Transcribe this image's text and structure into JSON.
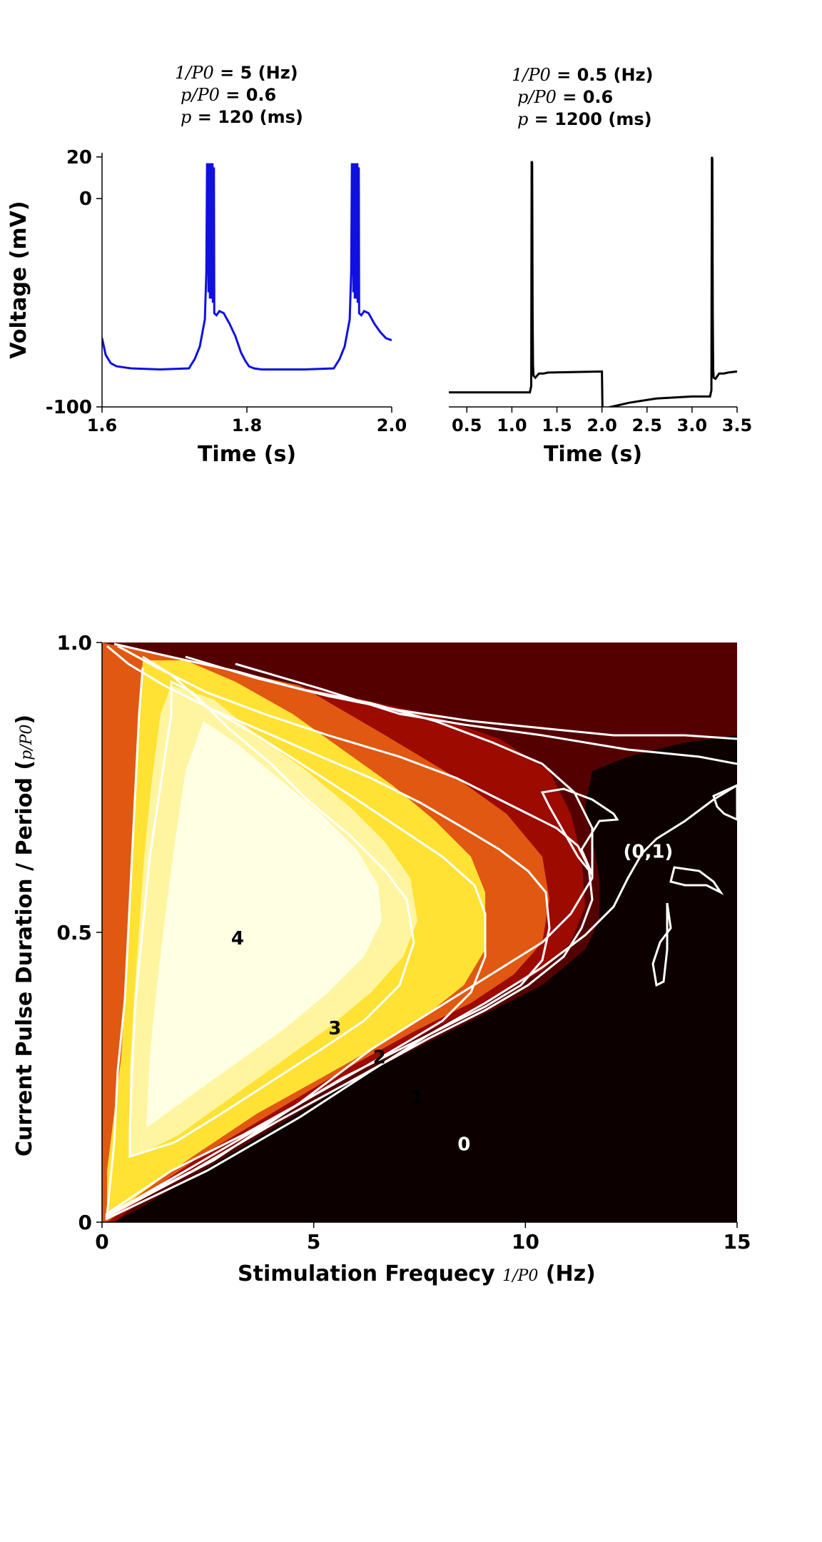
{
  "chart_data": [
    {
      "type": "line",
      "title_lines": [
        {
          "math": "1/P0",
          "text": " = 5 (Hz)"
        },
        {
          "math": "p/P0",
          "text": " = 0.6"
        },
        {
          "math": "p",
          "text": " = 120 (ms)"
        }
      ],
      "xlabel": "Time (s)",
      "ylabel": "Voltage (mV)",
      "xlim": [
        1.6,
        2.0
      ],
      "ylim": [
        -100,
        22
      ],
      "xticks": [
        "1.6",
        "1.8",
        "2.0"
      ],
      "xtick_values": [
        1.6,
        1.8,
        2.0
      ],
      "yticks": [
        "20",
        "0",
        "-100"
      ],
      "ytick_values": [
        20,
        0,
        -100
      ],
      "color": "#1010e0",
      "series": [
        {
          "x": [
            1.6,
            1.605,
            1.612,
            1.62,
            1.64,
            1.68,
            1.72,
            1.728,
            1.735,
            1.742,
            1.744,
            1.745,
            1.746,
            1.7465,
            1.747,
            1.748,
            1.7485,
            1.749,
            1.75,
            1.7505,
            1.751,
            1.752,
            1.7525,
            1.753,
            1.754,
            1.7545,
            1.755,
            1.758,
            1.762,
            1.768,
            1.776,
            1.784,
            1.792,
            1.798,
            1.803,
            1.81,
            1.82,
            1.84,
            1.88,
            1.92,
            1.928,
            1.935,
            1.942,
            1.944,
            1.945,
            1.946,
            1.9465,
            1.947,
            1.948,
            1.9485,
            1.949,
            1.95,
            1.9505,
            1.951,
            1.952,
            1.9525,
            1.953,
            1.954,
            1.9545,
            1.955,
            1.958,
            1.962,
            1.968,
            1.976,
            1.984,
            1.992,
            2.0
          ],
          "y": [
            -67,
            -75,
            -79,
            -80.5,
            -81.5,
            -82,
            -81.5,
            -77,
            -71,
            -58,
            -35,
            17,
            -35,
            17,
            -45,
            -35,
            17,
            -48,
            -38,
            17,
            -48,
            -40,
            17,
            -50,
            -40,
            15,
            -55,
            -56,
            -54,
            -55,
            -60,
            -66,
            -74,
            -78,
            -80.5,
            -81.5,
            -82,
            -82,
            -82,
            -81.5,
            -77,
            -71,
            -58,
            -35,
            17,
            -35,
            17,
            -45,
            -35,
            17,
            -48,
            -38,
            17,
            -48,
            -40,
            17,
            -50,
            -40,
            15,
            -55,
            -56,
            -54,
            -55,
            -60,
            -64,
            -67,
            -68
          ]
        }
      ]
    },
    {
      "type": "line",
      "title_lines": [
        {
          "math": "1/P0",
          "text": " = 0.5 (Hz)"
        },
        {
          "math": "p/P0",
          "text": " = 0.6"
        },
        {
          "math": "p",
          "text": " = 1200 (ms)"
        }
      ],
      "xlabel": "Time (s)",
      "xlim": [
        0.3,
        3.5
      ],
      "ylim": [
        -100,
        22
      ],
      "xticks": [
        "0.5",
        "1.0",
        "1.5",
        "2.0",
        "2.5",
        "3.0",
        "3.5"
      ],
      "xtick_values": [
        0.5,
        1.0,
        1.5,
        2.0,
        2.5,
        3.0,
        3.5
      ],
      "color": "#000000",
      "series": [
        {
          "x": [
            0.3,
            1.0,
            1.2,
            1.215,
            1.22,
            1.225,
            1.23,
            1.235,
            1.24,
            1.26,
            1.3,
            1.35,
            1.4,
            2.0,
            2.005,
            2.02,
            2.1,
            2.3,
            2.6,
            3.0,
            3.2,
            3.215,
            3.22,
            3.225,
            3.23,
            3.235,
            3.24,
            3.26,
            3.3,
            3.35,
            3.4,
            3.5
          ],
          "y": [
            -93,
            -93,
            -93,
            -90,
            18,
            17,
            -55,
            -80,
            -85,
            -86,
            -84,
            -84,
            -83.5,
            -83,
            -100,
            -101,
            -100,
            -98,
            -96,
            -95,
            -95,
            -92,
            20,
            19,
            -55,
            -82,
            -86,
            -86.5,
            -84,
            -84,
            -83.5,
            -83
          ]
        }
      ]
    },
    {
      "type": "heatmap",
      "xlabel": "Stimulation Frequecy",
      "xlabel_math": "1/P0",
      "xlabel_unit": "(Hz)",
      "ylabel": "Current Pulse Duration / Period",
      "ylabel_math": "p/P0",
      "xlim": [
        0,
        15
      ],
      "ylim": [
        0,
        1
      ],
      "xticks": [
        "0",
        "5",
        "10",
        "15"
      ],
      "xtick_values": [
        0,
        5,
        10,
        15
      ],
      "yticks": [
        "0",
        "0.5",
        "1.0"
      ],
      "ytick_values": [
        0,
        0.5,
        1.0
      ],
      "colormap": [
        "#0c0000",
        "#550000",
        "#9c0a00",
        "#e05812",
        "#ffe234",
        "#fff5a0",
        "#ffffe4"
      ],
      "region_labels": [
        {
          "text": "4",
          "x": 3.2,
          "y": 0.49,
          "color": "#000000"
        },
        {
          "text": "3",
          "x": 5.5,
          "y": 0.335,
          "color": "#000000"
        },
        {
          "text": "2",
          "x": 6.55,
          "y": 0.285,
          "color": "#000000"
        },
        {
          "text": "1",
          "x": 7.45,
          "y": 0.215,
          "color": "#000000"
        },
        {
          "text": "0",
          "x": 8.55,
          "y": 0.135,
          "color": "#ffffff"
        },
        {
          "text": "(0,1)",
          "x": 12.9,
          "y": 0.64,
          "color": "#ffffff"
        }
      ]
    }
  ]
}
